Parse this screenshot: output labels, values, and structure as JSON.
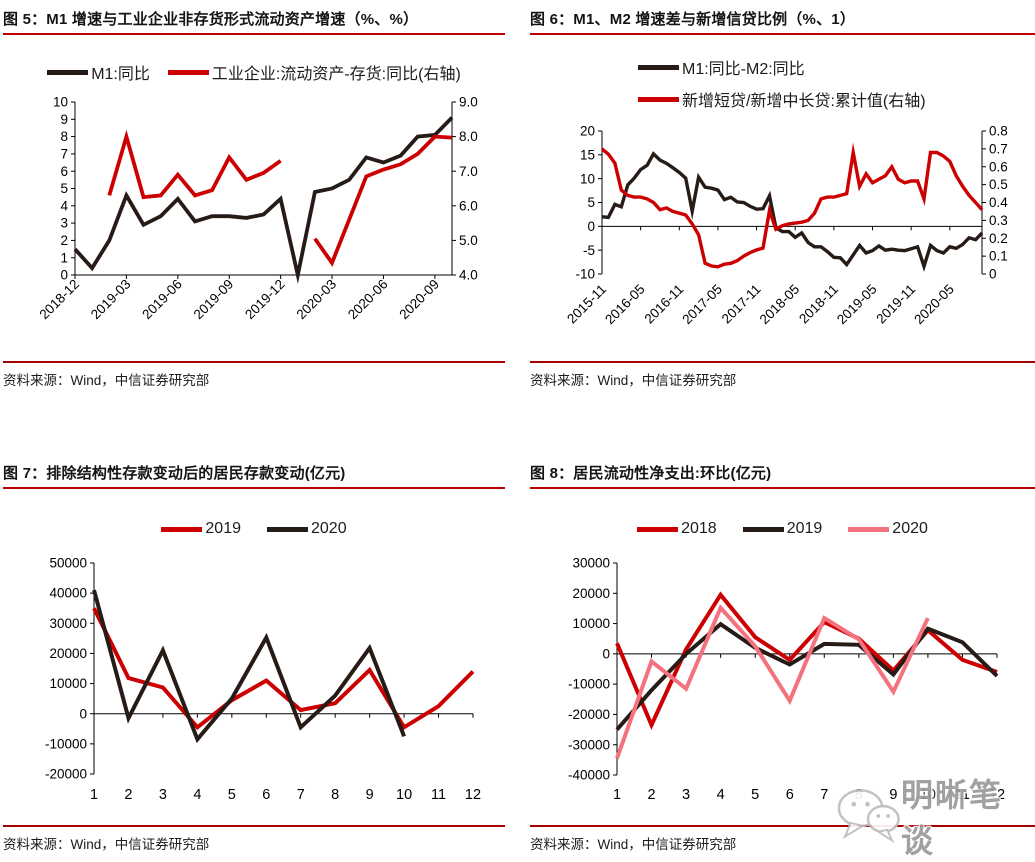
{
  "colors": {
    "red": "#cc0000",
    "black": "#261b16",
    "pink": "#f4727e",
    "underline": "#c00000",
    "separator": "#a80000",
    "watermark": "#9a9a9a"
  },
  "source_label": "资料来源：Wind，中信证券研究部",
  "watermark": {
    "text": "明晰笔谈",
    "icon": "wechat-bubbles-icon"
  },
  "chart_data": [
    {
      "id": "fig5",
      "type": "line",
      "title": "图 5：M1 增速与工业企业非存货形式流动资产增速（%、%）",
      "x_tick_labels": [
        "2018-12",
        "2019-03",
        "2019-06",
        "2019-09",
        "2019-12",
        "2020-03",
        "2020-06",
        "2020-09"
      ],
      "x_tick_indices": [
        0,
        3,
        6,
        9,
        12,
        15,
        18,
        21
      ],
      "y_left": {
        "min": 0,
        "max": 10,
        "ticks": [
          "0",
          "1",
          "2",
          "3",
          "4",
          "5",
          "6",
          "7",
          "8",
          "9",
          "10"
        ]
      },
      "y_right": {
        "min": 4,
        "max": 9,
        "ticks": [
          "4.0",
          "5.0",
          "6.0",
          "7.0",
          "8.0",
          "9.0"
        ]
      },
      "x_axis_at": 0,
      "legend_position": "top-center",
      "series": [
        {
          "name": "M1:同比",
          "color": "black",
          "axis": "left",
          "values": [
            1.5,
            0.4,
            2.0,
            4.6,
            2.9,
            3.4,
            4.4,
            3.1,
            3.4,
            3.4,
            3.3,
            3.5,
            4.4,
            0.0,
            4.8,
            5.0,
            5.5,
            6.8,
            6.5,
            6.9,
            8.0,
            8.1,
            9.1
          ]
        },
        {
          "name": "工业企业:流动资产-存货:同比(右轴)",
          "color": "red",
          "axis": "right",
          "values": [
            null,
            null,
            6.3,
            8.0,
            6.25,
            6.3,
            6.9,
            6.3,
            6.45,
            7.4,
            6.75,
            6.95,
            7.3,
            null,
            5.05,
            4.35,
            5.6,
            6.85,
            7.05,
            7.2,
            7.5,
            8.0,
            7.97
          ]
        }
      ]
    },
    {
      "id": "fig6",
      "type": "line",
      "title": "图 6：M1、M2 增速差与新增信贷比例（%、1）",
      "x_tick_labels": [
        "2015-11",
        "2016-05",
        "2016-11",
        "2017-05",
        "2017-11",
        "2018-05",
        "2018-11",
        "2019-05",
        "2019-11",
        "2020-05"
      ],
      "x_tick_indices": [
        0,
        6,
        12,
        18,
        24,
        30,
        36,
        42,
        48,
        54
      ],
      "y_left": {
        "min": -10,
        "max": 20,
        "ticks": [
          "-10",
          "-5",
          "0",
          "5",
          "10",
          "15",
          "20"
        ]
      },
      "y_right": {
        "min": 0,
        "max": 0.8,
        "ticks": [
          "0",
          "0.1",
          "0.2",
          "0.3",
          "0.4",
          "0.5",
          "0.6",
          "0.7",
          "0.8"
        ]
      },
      "x_axis_at": 0,
      "legend_position": "top-left-stacked",
      "series": [
        {
          "name": "M1:同比-M2:同比",
          "color": "black",
          "axis": "left",
          "values": [
            2.0,
            1.9,
            4.6,
            4.1,
            8.7,
            10.1,
            11.9,
            12.8,
            15.2,
            13.9,
            13.2,
            12.3,
            11.3,
            10.1,
            3.2,
            10.3,
            8.2,
            8.0,
            7.6,
            5.6,
            6.1,
            5.1,
            5.0,
            4.2,
            3.6,
            3.7,
            6.4,
            -0.3,
            -1.1,
            -1.1,
            -2.3,
            -1.4,
            -3.4,
            -4.3,
            -4.3,
            -5.3,
            -6.5,
            -6.6,
            -8.0,
            -6.0,
            -4.0,
            -5.6,
            -5.1,
            -4.1,
            -5.0,
            -4.8,
            -5.0,
            -5.1,
            -4.7,
            -4.3,
            -8.4,
            -4.0,
            -5.1,
            -5.6,
            -4.3,
            -4.6,
            -3.8,
            -2.4,
            -2.8,
            -1.4
          ]
        },
        {
          "name": "新增短贷/新增中长贷:累计值(右轴)",
          "color": "red",
          "axis": "right",
          "values": [
            0.7,
            0.67,
            0.62,
            0.47,
            0.44,
            0.43,
            0.43,
            0.42,
            0.4,
            0.36,
            0.37,
            0.35,
            0.34,
            0.33,
            0.28,
            0.22,
            0.06,
            0.045,
            0.04,
            0.055,
            0.06,
            0.075,
            0.1,
            0.12,
            0.135,
            0.145,
            0.355,
            0.25,
            0.27,
            0.28,
            0.285,
            0.29,
            0.3,
            0.34,
            0.42,
            0.43,
            0.43,
            0.44,
            0.45,
            0.68,
            0.49,
            0.56,
            0.51,
            0.53,
            0.55,
            0.6,
            0.53,
            0.51,
            0.52,
            0.52,
            0.42,
            0.68,
            0.68,
            0.66,
            0.63,
            0.55,
            0.49,
            0.44,
            0.4,
            0.36
          ]
        }
      ]
    },
    {
      "id": "fig7",
      "type": "line",
      "title": "图 7：排除结构性存款变动后的居民存款变动(亿元)",
      "x_tick_labels": [
        "1",
        "2",
        "3",
        "4",
        "5",
        "6",
        "7",
        "8",
        "9",
        "10",
        "11",
        "12"
      ],
      "x_tick_indices": [
        0,
        1,
        2,
        3,
        4,
        5,
        6,
        7,
        8,
        9,
        10,
        11
      ],
      "y_left": {
        "min": -20000,
        "max": 50000,
        "ticks": [
          "-20000",
          "-10000",
          "0",
          "10000",
          "20000",
          "30000",
          "40000",
          "50000"
        ]
      },
      "x_axis_at": 0,
      "legend_position": "top-center",
      "series": [
        {
          "name": "2019",
          "color": "red",
          "axis": "left",
          "values": [
            35000,
            11800,
            8700,
            -4500,
            4500,
            11000,
            1200,
            3500,
            14500,
            -4500,
            2500,
            14000
          ]
        },
        {
          "name": "2020",
          "color": "black",
          "axis": "left",
          "values": [
            41000,
            -1500,
            21000,
            -8500,
            5000,
            25300,
            -4500,
            6000,
            21800,
            -7500,
            null,
            null
          ]
        }
      ]
    },
    {
      "id": "fig8",
      "type": "line",
      "title": "图 8：居民流动性净支出:环比(亿元)",
      "x_tick_labels": [
        "1",
        "2",
        "3",
        "4",
        "5",
        "6",
        "7",
        "8",
        "9",
        "10",
        "11",
        "12"
      ],
      "x_tick_indices": [
        0,
        1,
        2,
        3,
        4,
        5,
        6,
        7,
        8,
        9,
        10,
        11
      ],
      "y_left": {
        "min": -40000,
        "max": 30000,
        "ticks": [
          "-40000",
          "-30000",
          "-20000",
          "-10000",
          "0",
          "10000",
          "20000",
          "30000"
        ]
      },
      "x_axis_at": 0,
      "legend_position": "top-center",
      "series": [
        {
          "name": "2018",
          "color": "red",
          "axis": "left",
          "values": [
            3500,
            -23500,
            1500,
            19500,
            5500,
            -2000,
            10500,
            5000,
            -5500,
            7800,
            -2000,
            -6000
          ]
        },
        {
          "name": "2019",
          "color": "black",
          "axis": "left",
          "values": [
            -25000,
            -12000,
            0,
            9800,
            2000,
            -3500,
            3300,
            3000,
            -6800,
            8300,
            3800,
            -7300
          ]
        },
        {
          "name": "2020",
          "color": "pink",
          "axis": "left",
          "values": [
            -34500,
            -2500,
            -11500,
            15200,
            2500,
            -15500,
            11800,
            4800,
            -12500,
            11800,
            null,
            null
          ]
        }
      ]
    }
  ]
}
